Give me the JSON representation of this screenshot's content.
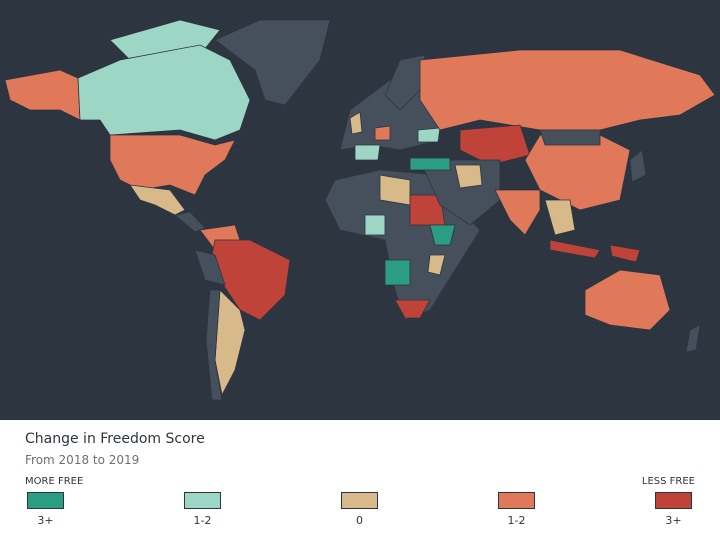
{
  "legend": {
    "title": "Change in Freedom Score",
    "subtitle": "From 2018 to 2019",
    "more_free_label": "MORE FREE",
    "less_free_label": "LESS FREE",
    "items": [
      {
        "label": "3+",
        "color": "#2a9d82"
      },
      {
        "label": "1-2",
        "color": "#9ed6c6"
      },
      {
        "label": "0",
        "color": "#d8b98a"
      },
      {
        "label": "1-2",
        "color": "#e0785a"
      },
      {
        "label": "3+",
        "color": "#bf4338"
      }
    ]
  }
}
